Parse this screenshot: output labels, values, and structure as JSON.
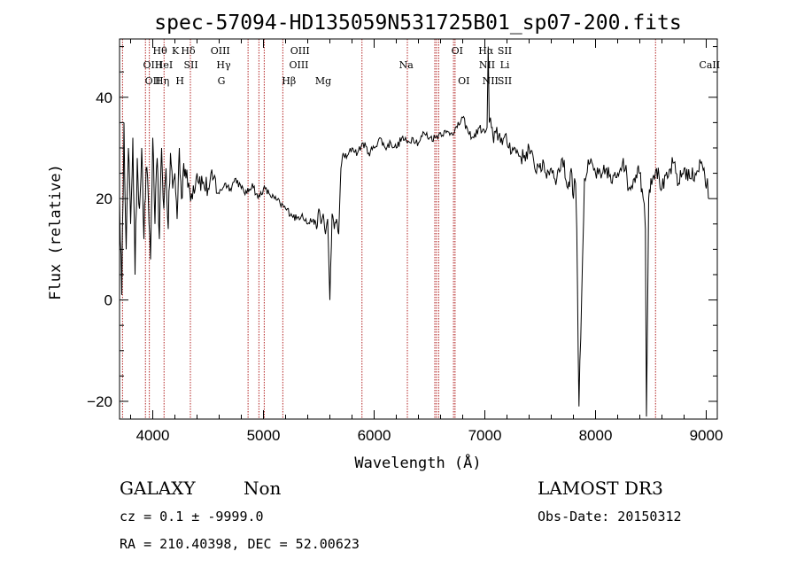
{
  "chart_data": {
    "type": "line",
    "title": "spec-57094-HD135059N531725B01_sp07-200.fits",
    "xlabel": "Wavelength (Å)",
    "ylabel": "Flux (relative)",
    "xlim": [
      3700,
      9100
    ],
    "ylim": [
      -23.5,
      51.5
    ],
    "xticks": [
      4000,
      5000,
      6000,
      7000,
      8000,
      9000
    ],
    "yticks": [
      -20,
      0,
      20,
      40
    ],
    "series": [
      {
        "name": "spectrum",
        "color": "#000000",
        "x": [
          3700,
          3720,
          3740,
          3760,
          3780,
          3800,
          3820,
          3840,
          3860,
          3880,
          3900,
          3920,
          3940,
          3960,
          3980,
          4000,
          4020,
          4040,
          4060,
          4080,
          4100,
          4120,
          4140,
          4160,
          4180,
          4200,
          4220,
          4240,
          4260,
          4280,
          4300,
          4350,
          4400,
          4450,
          4500,
          4550,
          4600,
          4650,
          4700,
          4750,
          4800,
          4850,
          4900,
          4950,
          5000,
          5050,
          5100,
          5150,
          5200,
          5250,
          5300,
          5350,
          5400,
          5450,
          5480,
          5500,
          5520,
          5540,
          5560,
          5580,
          5600,
          5620,
          5640,
          5660,
          5680,
          5700,
          5720,
          5750,
          5800,
          5850,
          5900,
          5950,
          6000,
          6050,
          6100,
          6150,
          6200,
          6250,
          6300,
          6350,
          6400,
          6450,
          6500,
          6550,
          6600,
          6650,
          6700,
          6750,
          6800,
          6850,
          6900,
          6950,
          7000,
          7020,
          7030,
          7040,
          7050,
          7060,
          7080,
          7100,
          7150,
          7200,
          7250,
          7300,
          7350,
          7400,
          7450,
          7500,
          7550,
          7600,
          7650,
          7700,
          7750,
          7780,
          7800,
          7810,
          7820,
          7830,
          7850,
          7900,
          7950,
          8000,
          8050,
          8100,
          8150,
          8200,
          8250,
          8300,
          8350,
          8380,
          8400,
          8420,
          8430,
          8440,
          8450,
          8460,
          8480,
          8500,
          8550,
          8600,
          8650,
          8700,
          8750,
          8800,
          8850,
          8900,
          8950,
          8980,
          9000,
          9010,
          9020
        ],
        "y": [
          20,
          1,
          35,
          10,
          30,
          15,
          32,
          5,
          28,
          18,
          30,
          12,
          26,
          20,
          8,
          32,
          15,
          28,
          12,
          30,
          18,
          26,
          14,
          29,
          22,
          25,
          16,
          30,
          20,
          27,
          24,
          21,
          25,
          23,
          22,
          24,
          21,
          23,
          22,
          24,
          22,
          21,
          23,
          20,
          22,
          21,
          20,
          19,
          18,
          17,
          16,
          17,
          15,
          16,
          14,
          18,
          15,
          17,
          13,
          16,
          0,
          17,
          14,
          16,
          13,
          26,
          29,
          28,
          30,
          29,
          31,
          29,
          30,
          32,
          30,
          31,
          30,
          32,
          31,
          32,
          31,
          33,
          32,
          32,
          33,
          33,
          33,
          34,
          36,
          33,
          32,
          34,
          33,
          34,
          50,
          35,
          36,
          34,
          31,
          33,
          32,
          31,
          30,
          29,
          28,
          30,
          26,
          27,
          25,
          26,
          24,
          28,
          22,
          26,
          20,
          24,
          23,
          14,
          -21,
          24,
          27,
          25,
          24,
          26,
          23,
          25,
          28,
          22,
          24,
          26,
          25,
          22,
          20,
          19,
          14,
          -23,
          20,
          24,
          26,
          22,
          24,
          27,
          23,
          26,
          24,
          25,
          27,
          26,
          22,
          24,
          20
        ]
      }
    ],
    "emission_lines": [
      {
        "x": 3727,
        "label": "OII"
      },
      {
        "x": 3934,
        "label": "K"
      },
      {
        "x": 3969,
        "label": "H"
      },
      {
        "x": 4102,
        "label": "Hδ"
      },
      {
        "x": 4340,
        "label": "Hγ"
      },
      {
        "x": 4861,
        "label": "Hβ"
      },
      {
        "x": 4959,
        "label": "OIII"
      },
      {
        "x": 5007,
        "label": "OIII"
      },
      {
        "x": 5175,
        "label": "Mg"
      },
      {
        "x": 5890,
        "label": "Na"
      },
      {
        "x": 6300,
        "label": "OI"
      },
      {
        "x": 6548,
        "label": "NII"
      },
      {
        "x": 6563,
        "label": "Hα"
      },
      {
        "x": 6583,
        "label": "NII"
      },
      {
        "x": 6717,
        "label": "SII"
      },
      {
        "x": 6731,
        "label": "SII"
      },
      {
        "x": 8542,
        "label": "CaII"
      }
    ]
  },
  "plot_labels": [
    {
      "x": 4000,
      "row": 0,
      "text": "OII"
    },
    {
      "x": 4000,
      "row": 1,
      "text": "OIII"
    },
    {
      "x": 4065,
      "row": 2,
      "text": "Hθ"
    },
    {
      "x": 4100,
      "row": 1,
      "text": "HeI"
    },
    {
      "x": 4085,
      "row": 0,
      "text": "Hη"
    },
    {
      "x": 4205,
      "row": 2,
      "text": "K"
    },
    {
      "x": 4245,
      "row": 0,
      "text": "H"
    },
    {
      "x": 4320,
      "row": 2,
      "text": "Hδ"
    },
    {
      "x": 4345,
      "row": 1,
      "text": "SII"
    },
    {
      "x": 4610,
      "row": 2,
      "text": "OIII"
    },
    {
      "x": 4640,
      "row": 1,
      "text": "Hγ"
    },
    {
      "x": 4620,
      "row": 0,
      "text": "G"
    },
    {
      "x": 5330,
      "row": 2,
      "text": "OIII"
    },
    {
      "x": 5320,
      "row": 1,
      "text": "OIII"
    },
    {
      "x": 5230,
      "row": 0,
      "text": "Hβ"
    },
    {
      "x": 5540,
      "row": 0,
      "text": "Mg"
    },
    {
      "x": 6290,
      "row": 1,
      "text": "Na"
    },
    {
      "x": 6750,
      "row": 2,
      "text": "OI"
    },
    {
      "x": 6810,
      "row": 0,
      "text": "OI"
    },
    {
      "x": 7010,
      "row": 2,
      "text": "Hα"
    },
    {
      "x": 7180,
      "row": 2,
      "text": "SII"
    },
    {
      "x": 7020,
      "row": 1,
      "text": "NII"
    },
    {
      "x": 7180,
      "row": 1,
      "text": "Li"
    },
    {
      "x": 7050,
      "row": 0,
      "text": "NII"
    },
    {
      "x": 7180,
      "row": 0,
      "text": "SII"
    },
    {
      "x": 9030,
      "row": 1,
      "text": "CaII"
    }
  ],
  "footer": {
    "class_label": "GALAXY",
    "subclass": "Non",
    "survey": "LAMOST DR3",
    "redshift": "cz = 0.1 ± -9999.0",
    "obs_date": "Obs-Date: 20150312",
    "coords": "RA = 210.40398, DEC =  52.00623"
  },
  "colors": {
    "line_marker": "#b22222",
    "spectrum": "#000000",
    "axes": "#000000"
  }
}
